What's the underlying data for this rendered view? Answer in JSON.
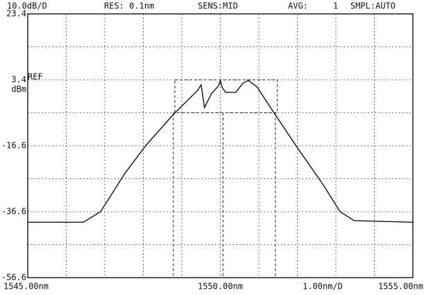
{
  "chart_data": {
    "type": "line",
    "header": [
      "10.0dB/D",
      "RES: 0.1nm",
      "SENS:MID",
      "AVG:",
      "1",
      "SMPL:AUTO"
    ],
    "y_unit": "dBm",
    "ref_label": "REF",
    "x_scale_label": "1.00nm/D",
    "xlim": [
      1545,
      1555
    ],
    "ylim": [
      -56.6,
      23.4
    ],
    "xticks": [
      {
        "value": 1545,
        "label": "1545.00nm"
      },
      {
        "value": 1550,
        "label": "1550.00nm"
      },
      {
        "value": 1555,
        "label": "1555.00nm"
      }
    ],
    "xminor": [
      1546,
      1547,
      1548,
      1549,
      1551,
      1552,
      1553,
      1554
    ],
    "yticks": [
      23.4,
      3.4,
      -16.6,
      -36.6,
      -56.6
    ],
    "yminor": [
      13.4,
      -6.6,
      -26.6,
      -46.6
    ],
    "grid": true,
    "series": [
      {
        "name": "trace",
        "color": "#111111",
        "x": [
          1545,
          1546.44,
          1546.89,
          1547.52,
          1548.06,
          1548.78,
          1549.41,
          1549.5,
          1549.59,
          1549.77,
          1549.95,
          1550.0,
          1550.05,
          1550.14,
          1550.4,
          1550.59,
          1550.73,
          1550.95,
          1551.4,
          1552.03,
          1552.66,
          1553.11,
          1553.47,
          1555
        ],
        "values": [
          -39.8,
          -39.8,
          -36.6,
          -25,
          -16.6,
          -7.1,
          0.2,
          1.9,
          -5,
          -0.8,
          1.5,
          3.2,
          1.0,
          -0.4,
          -0.4,
          2.4,
          3.2,
          1.3,
          -6.7,
          -17.7,
          -28.2,
          -36.6,
          -39.3,
          -39.8
        ]
      }
    ],
    "markers": [
      1548.78,
      1550.07,
      1551.43
    ],
    "box": {
      "x": [
        1548.82,
        1551.48
      ],
      "y": [
        3.4,
        -6.6
      ]
    }
  }
}
